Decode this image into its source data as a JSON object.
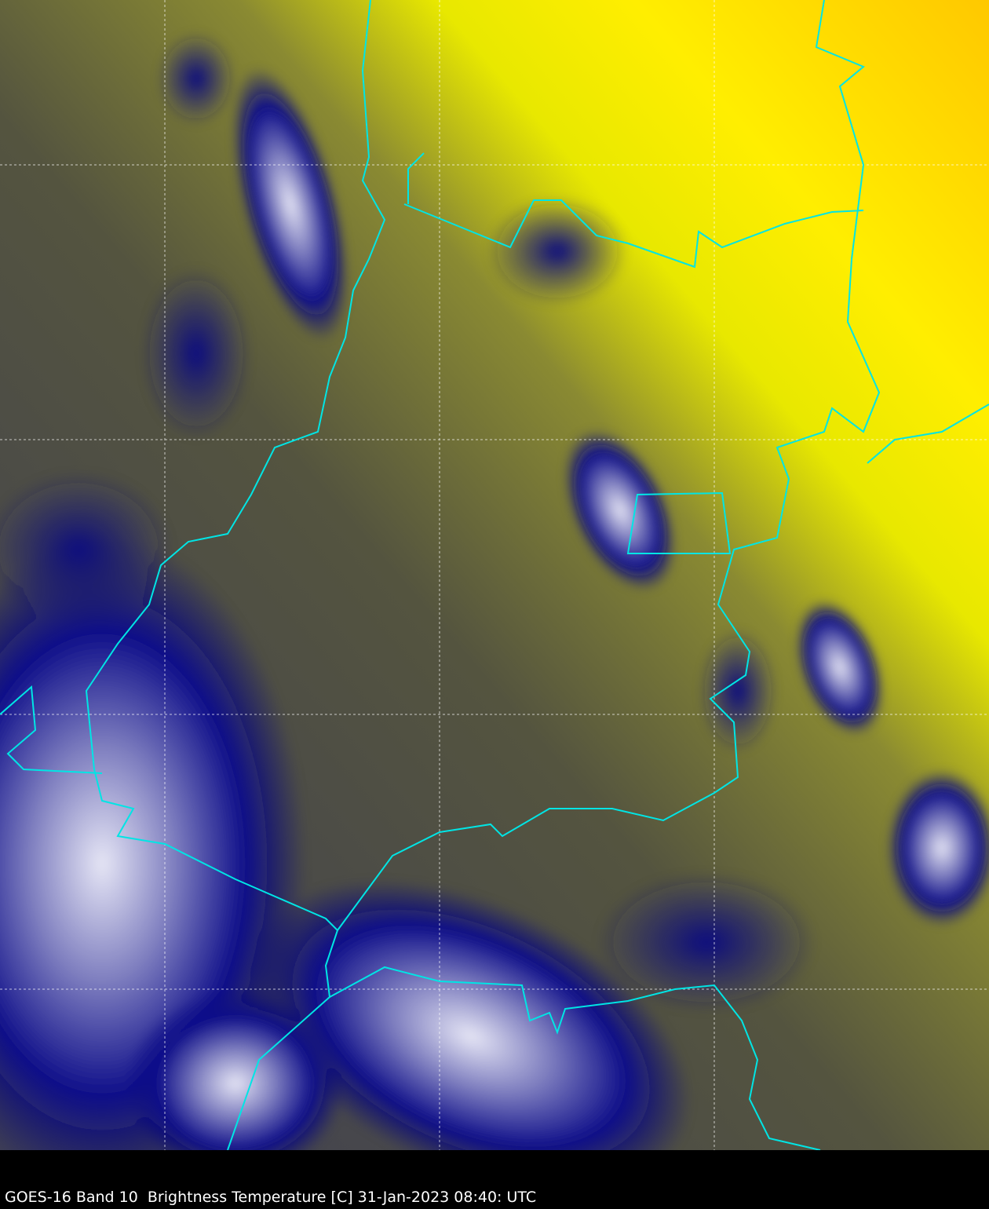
{
  "caption": "GOES-16 Band 10  Brightness Temperature [C] 31-Jan-2023 08:40: UTC",
  "colors": {
    "background": "#000000",
    "warm": "#ffd700",
    "mid": "#7a7a40",
    "cold": "#000080",
    "coldest": "#e8e8f8",
    "borders": "#00e5e5",
    "grid": "#ffffff"
  },
  "layers": [
    "brightness-temperature",
    "political-boundaries",
    "lat-lon-grid"
  ]
}
